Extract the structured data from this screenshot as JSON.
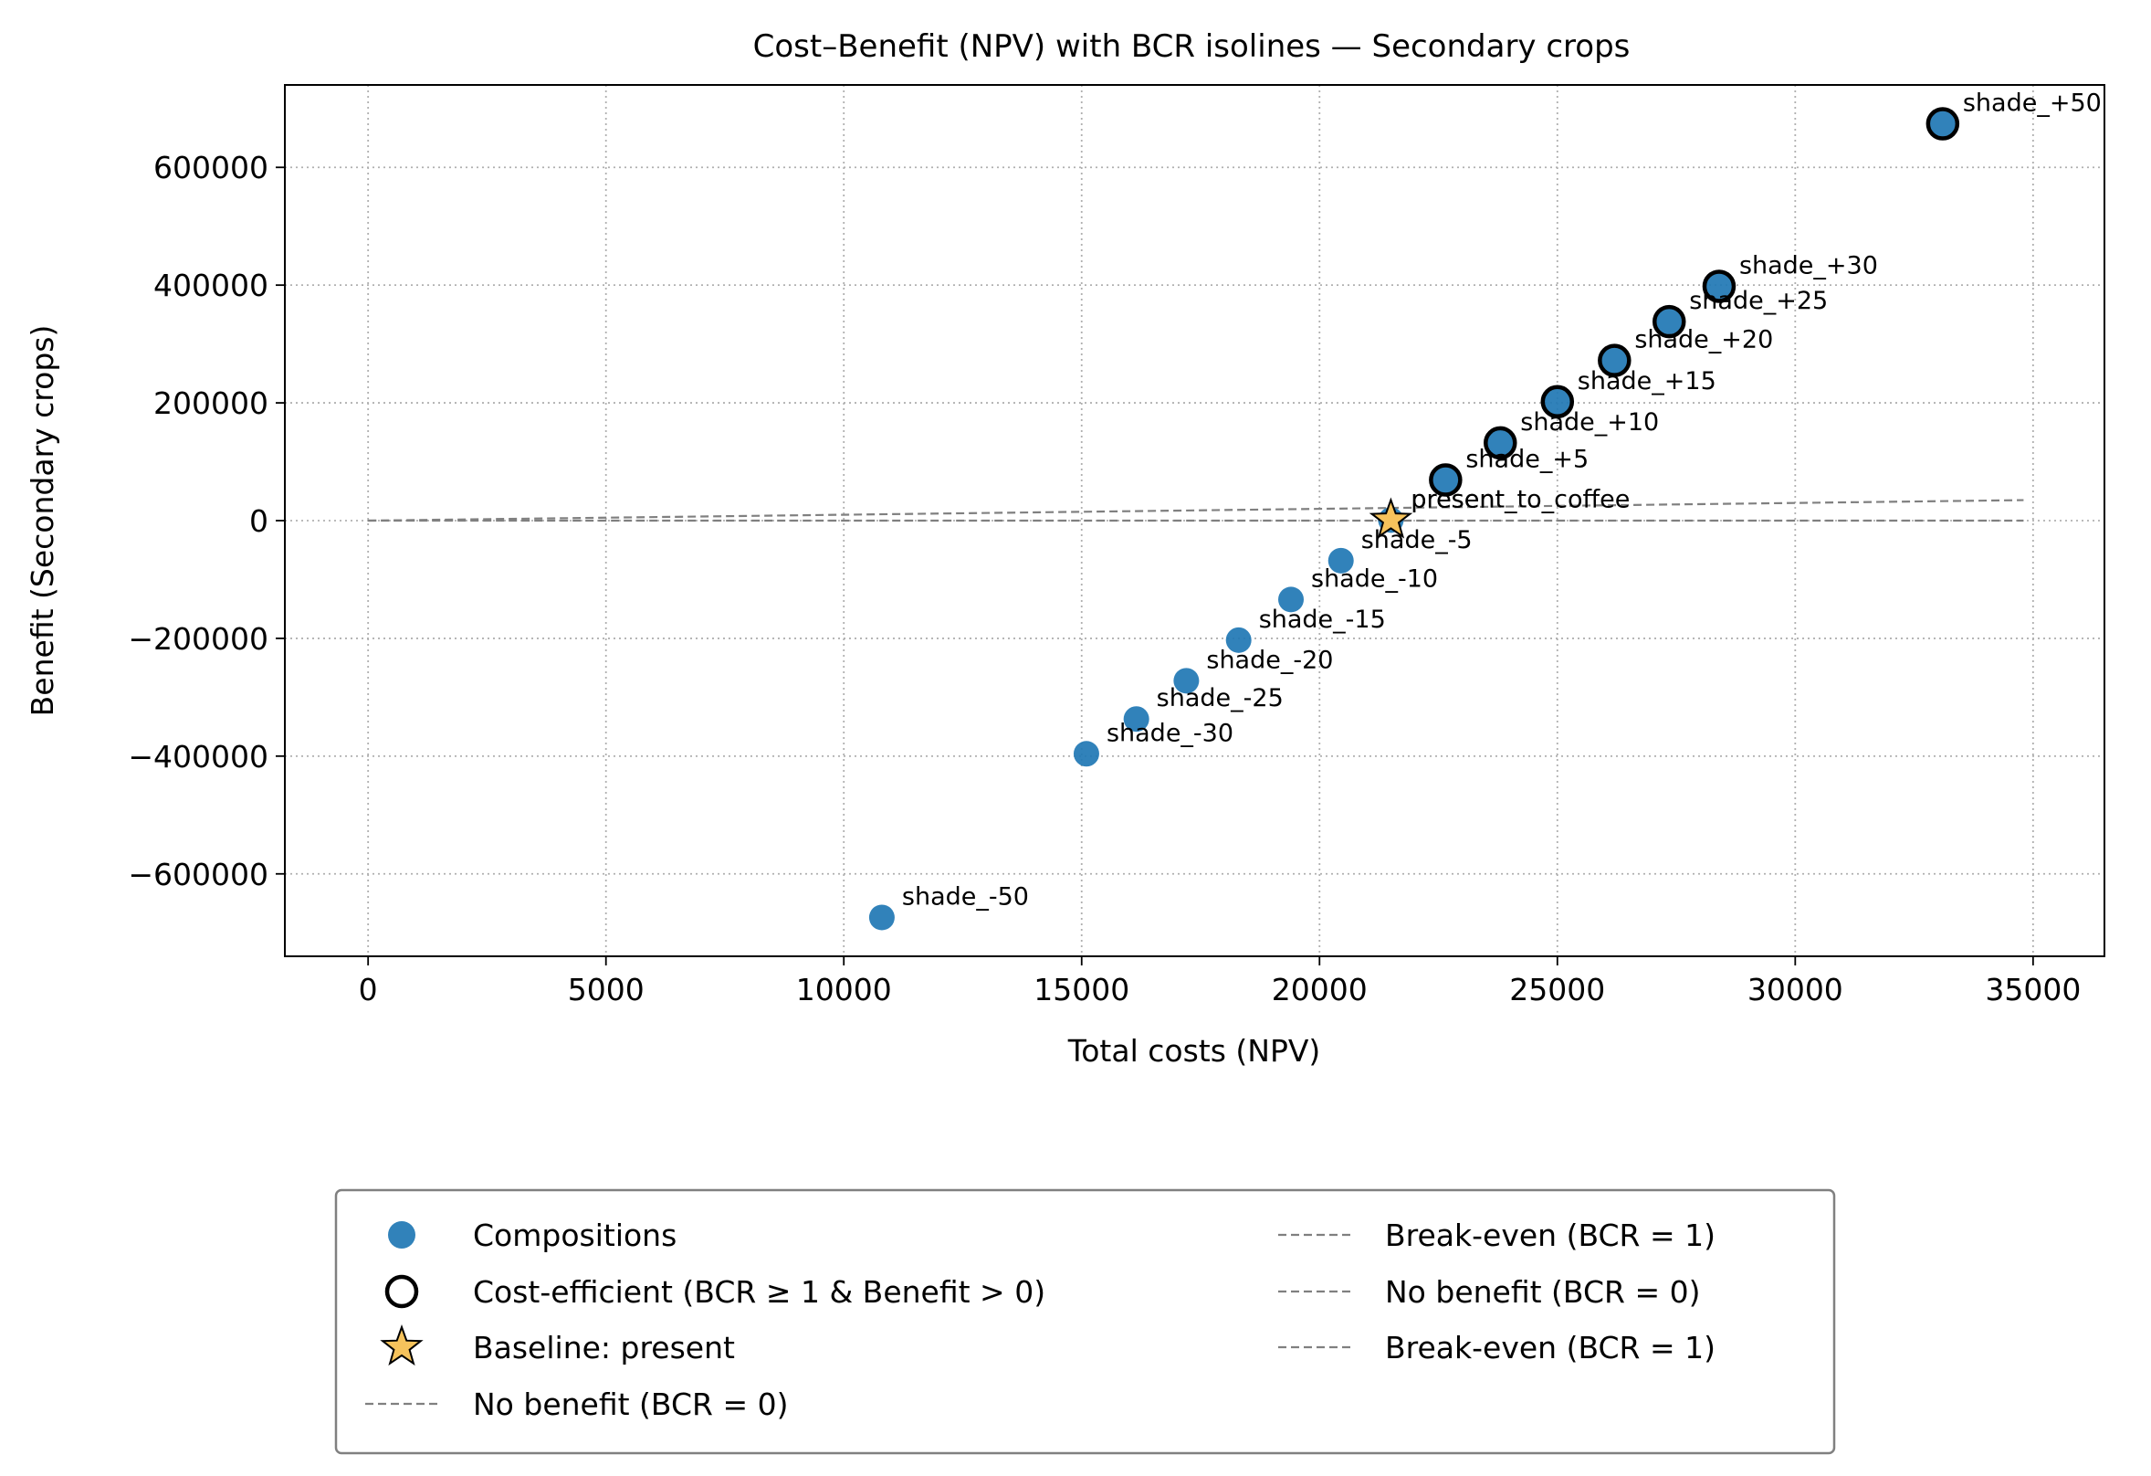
{
  "chart_data": {
    "type": "scatter",
    "title": "Cost–Benefit (NPV) with BCR isolines — Secondary crops",
    "xlabel": "Total costs (NPV)",
    "ylabel": "Benefit (Secondary crops)",
    "xlim": [
      -1750,
      36500
    ],
    "ylim": [
      -740000,
      740000
    ],
    "xticks": [
      0,
      5000,
      10000,
      15000,
      20000,
      25000,
      30000,
      35000
    ],
    "yticks": [
      -600000,
      -400000,
      -200000,
      0,
      200000,
      400000,
      600000
    ],
    "grid": true,
    "colors": {
      "compositions": "#1f77b4",
      "baseline": "#f6c35c",
      "isoline": "#808080",
      "grid": "#b0b0b0",
      "legend_border": "#808080"
    },
    "points": [
      {
        "label": "shade_-50",
        "x": 10800,
        "y": -674000,
        "efficient": false
      },
      {
        "label": "shade_-30",
        "x": 15100,
        "y": -396000,
        "efficient": false
      },
      {
        "label": "shade_-25",
        "x": 16150,
        "y": -337000,
        "efficient": false
      },
      {
        "label": "shade_-20",
        "x": 17200,
        "y": -272000,
        "efficient": false
      },
      {
        "label": "shade_-15",
        "x": 18300,
        "y": -203000,
        "efficient": false
      },
      {
        "label": "shade_-10",
        "x": 19400,
        "y": -134000,
        "efficient": false
      },
      {
        "label": "shade_-5",
        "x": 20450,
        "y": -68000,
        "efficient": false
      },
      {
        "label": "present_to_coffee",
        "x": 21500,
        "y": 1000,
        "efficient": false
      },
      {
        "label": "shade_+5",
        "x": 22650,
        "y": 69000,
        "efficient": true
      },
      {
        "label": "shade_+10",
        "x": 23800,
        "y": 132000,
        "efficient": true
      },
      {
        "label": "shade_+15",
        "x": 25000,
        "y": 202000,
        "efficient": true
      },
      {
        "label": "shade_+20",
        "x": 26200,
        "y": 272000,
        "efficient": true
      },
      {
        "label": "shade_+25",
        "x": 27350,
        "y": 338000,
        "efficient": true
      },
      {
        "label": "shade_+30",
        "x": 28400,
        "y": 398000,
        "efficient": true
      },
      {
        "label": "shade_+50",
        "x": 33100,
        "y": 674000,
        "efficient": true
      }
    ],
    "baseline": {
      "label": "present",
      "x": 21500,
      "y": 1000
    },
    "isolines": [
      {
        "name": "Break-even (BCR = 1)",
        "bcr": 1
      },
      {
        "name": "No benefit (BCR = 0)",
        "bcr": 0
      }
    ],
    "isoline_x_range": [
      0,
      34800
    ],
    "legend": {
      "position": "below",
      "left_entries": [
        {
          "kind": "dot",
          "label": "Compositions"
        },
        {
          "kind": "ring",
          "label": "Cost-efficient (BCR ≥ 1 & Benefit > 0)"
        },
        {
          "kind": "star",
          "label": "Baseline: present"
        },
        {
          "kind": "dash",
          "label": "No benefit (BCR = 0)"
        }
      ],
      "right_entries": [
        {
          "kind": "dash",
          "label": "Break-even (BCR = 1)"
        },
        {
          "kind": "dash",
          "label": "No benefit (BCR = 0)"
        },
        {
          "kind": "dash",
          "label": "Break-even (BCR = 1)"
        }
      ]
    }
  }
}
